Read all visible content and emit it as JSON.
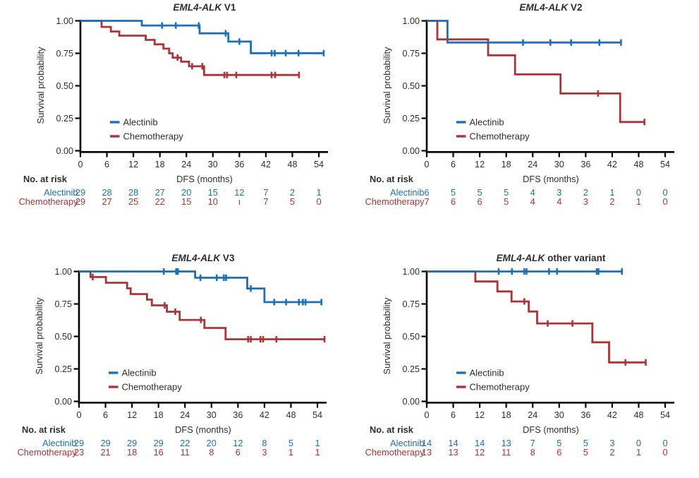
{
  "figure": {
    "background": "#ffffff",
    "ylabel": "Survival probability",
    "xlabel": "DFS (months)",
    "risk_header": "No. at risk",
    "yticks": [
      "1.00",
      "0.75",
      "0.50",
      "0.25",
      "0.00"
    ],
    "xticks": [
      "0",
      "6",
      "12",
      "18",
      "24",
      "30",
      "36",
      "42",
      "48",
      "54"
    ]
  },
  "colors": {
    "alectinib": "#1E6FB5",
    "chemotherapy": "#A93539",
    "axis": "#000000",
    "text": "#2E2E2E"
  },
  "chart_data": [
    {
      "type": "line",
      "subtype": "kaplan-meier",
      "title": {
        "italic": "EML4-ALK",
        "plain": " V1"
      },
      "xlabel": "DFS (months)",
      "ylabel": "Survival probability",
      "x_range": [
        0,
        54
      ],
      "y_range": [
        0,
        1
      ],
      "legend_position": "inside-lower-left",
      "series": [
        {
          "name": "Alectinib",
          "color": "alectinib",
          "steps": [
            [
              0,
              1.0
            ],
            [
              13.9,
              0.964
            ],
            [
              27.0,
              0.904
            ],
            [
              33.5,
              0.84
            ],
            [
              38.6,
              0.751
            ]
          ],
          "end": 55.1,
          "censors": [
            [
              18.5,
              0.964
            ],
            [
              21.6,
              0.964
            ],
            [
              26.8,
              0.964
            ],
            [
              32.9,
              0.904
            ],
            [
              36.0,
              0.84
            ],
            [
              43.3,
              0.751
            ],
            [
              44.0,
              0.751
            ],
            [
              46.5,
              0.751
            ],
            [
              49.4,
              0.751
            ],
            [
              55.1,
              0.751
            ]
          ]
        },
        {
          "name": "Chemotherapy",
          "color": "chemotherapy",
          "steps": [
            [
              0,
              1.0
            ],
            [
              4.8,
              0.953
            ],
            [
              6.9,
              0.918
            ],
            [
              8.8,
              0.886
            ],
            [
              14.8,
              0.853
            ],
            [
              16.8,
              0.819
            ],
            [
              18.8,
              0.786
            ],
            [
              20.1,
              0.75
            ],
            [
              20.9,
              0.717
            ],
            [
              22.8,
              0.686
            ],
            [
              24.6,
              0.65
            ],
            [
              28.0,
              0.583
            ]
          ],
          "end": 49.7,
          "censors": [
            [
              22.0,
              0.717
            ],
            [
              25.3,
              0.65
            ],
            [
              27.6,
              0.65
            ],
            [
              32.6,
              0.583
            ],
            [
              33.2,
              0.583
            ],
            [
              35.3,
              0.583
            ],
            [
              43.3,
              0.583
            ],
            [
              44.1,
              0.583
            ],
            [
              49.5,
              0.583
            ]
          ]
        }
      ],
      "at_risk": [
        {
          "label": "Alectinib",
          "color": "alectinib",
          "values": [
            "29",
            "28",
            "28",
            "27",
            "20",
            "15",
            "12",
            "7",
            "2",
            "1"
          ]
        },
        {
          "label": "Chemotherapy",
          "color": "chemotherapy",
          "values": [
            "29",
            "27",
            "25",
            "22",
            "15",
            "10",
            "ι",
            "7",
            "5",
            "0"
          ]
        }
      ]
    },
    {
      "type": "line",
      "subtype": "kaplan-meier",
      "title": {
        "italic": "EML4-ALK",
        "plain": " V2"
      },
      "xlabel": "DFS (months)",
      "ylabel": "Survival probability",
      "x_range": [
        0,
        54
      ],
      "y_range": [
        0,
        1
      ],
      "legend_position": "inside-lower-left",
      "series": [
        {
          "name": "Alectinib",
          "color": "alectinib",
          "steps": [
            [
              0,
              1.0
            ],
            [
              4.7,
              0.833
            ]
          ],
          "end": 44.0,
          "censors": [
            [
              21.8,
              0.833
            ],
            [
              28.0,
              0.833
            ],
            [
              32.7,
              0.833
            ],
            [
              39.1,
              0.833
            ],
            [
              44.0,
              0.833
            ]
          ]
        },
        {
          "name": "Chemotherapy",
          "color": "chemotherapy",
          "steps": [
            [
              0,
              1.0
            ],
            [
              2.4,
              0.857
            ],
            [
              13.9,
              0.735
            ],
            [
              20.0,
              0.588
            ],
            [
              30.3,
              0.441
            ],
            [
              43.8,
              0.221
            ]
          ],
          "end": 49.3,
          "censors": [
            [
              38.8,
              0.441
            ],
            [
              49.3,
              0.221
            ]
          ]
        }
      ],
      "at_risk": [
        {
          "label": "Alectinib",
          "color": "alectinib",
          "values": [
            "6",
            "5",
            "5",
            "5",
            "4",
            "3",
            "2",
            "1",
            "0",
            "0"
          ]
        },
        {
          "label": "Chemotherapy",
          "color": "chemotherapy",
          "values": [
            "7",
            "6",
            "6",
            "5",
            "4",
            "4",
            "3",
            "2",
            "1",
            "0"
          ]
        }
      ]
    },
    {
      "type": "line",
      "subtype": "kaplan-meier",
      "title": {
        "italic": "EML4-ALK",
        "plain": " V3"
      },
      "xlabel": "DFS (months)",
      "ylabel": "Survival probability",
      "x_range": [
        0,
        54
      ],
      "y_range": [
        0,
        1
      ],
      "legend_position": "inside-lower-left",
      "series": [
        {
          "name": "Alectinib",
          "color": "alectinib",
          "steps": [
            [
              0,
              1.0
            ],
            [
              26.3,
              0.952
            ],
            [
              38.1,
              0.869
            ],
            [
              42.0,
              0.764
            ]
          ],
          "end": 54.9,
          "censors": [
            [
              19.2,
              1.0
            ],
            [
              22.0,
              1.0
            ],
            [
              22.4,
              1.0
            ],
            [
              27.5,
              0.952
            ],
            [
              31.2,
              0.952
            ],
            [
              32.8,
              0.952
            ],
            [
              33.3,
              0.952
            ],
            [
              38.9,
              0.869
            ],
            [
              44.2,
              0.764
            ],
            [
              46.9,
              0.764
            ],
            [
              49.8,
              0.764
            ],
            [
              50.7,
              0.764
            ],
            [
              51.3,
              0.764
            ],
            [
              54.9,
              0.764
            ]
          ]
        },
        {
          "name": "Chemotherapy",
          "color": "chemotherapy",
          "steps": [
            [
              0,
              1.0
            ],
            [
              2.6,
              0.957
            ],
            [
              6.1,
              0.913
            ],
            [
              10.9,
              0.87
            ],
            [
              11.7,
              0.826
            ],
            [
              15.4,
              0.783
            ],
            [
              16.5,
              0.739
            ],
            [
              19.9,
              0.69
            ],
            [
              22.8,
              0.627
            ],
            [
              28.4,
              0.565
            ],
            [
              33.2,
              0.478
            ]
          ],
          "end": 55.6,
          "censors": [
            [
              3.1,
              0.957
            ],
            [
              19.4,
              0.739
            ],
            [
              21.8,
              0.69
            ],
            [
              27.6,
              0.627
            ],
            [
              38.3,
              0.478
            ],
            [
              38.9,
              0.478
            ],
            [
              41.1,
              0.478
            ],
            [
              41.7,
              0.478
            ],
            [
              44.7,
              0.478
            ],
            [
              55.6,
              0.478
            ]
          ]
        }
      ],
      "at_risk": [
        {
          "label": "Alectinib",
          "color": "alectinib",
          "values": [
            "29",
            "29",
            "29",
            "29",
            "22",
            "20",
            "12",
            "8",
            "5",
            "1"
          ]
        },
        {
          "label": "Chemotherapy",
          "color": "chemotherapy",
          "values": [
            "23",
            "21",
            "18",
            "16",
            "11",
            "8",
            "6",
            "3",
            "1",
            "1"
          ]
        }
      ]
    },
    {
      "type": "line",
      "subtype": "kaplan-meier",
      "title": {
        "italic": "EML4-ALK",
        "plain": " other variant"
      },
      "xlabel": "DFS (months)",
      "ylabel": "Survival probability",
      "x_range": [
        0,
        54
      ],
      "y_range": [
        0,
        1
      ],
      "legend_position": "inside-lower-left",
      "series": [
        {
          "name": "Alectinib",
          "color": "alectinib",
          "steps": [
            [
              0,
              1.0
            ]
          ],
          "end": 44.2,
          "censors": [
            [
              16.3,
              1.0
            ],
            [
              19.3,
              1.0
            ],
            [
              22.1,
              1.0
            ],
            [
              22.6,
              1.0
            ],
            [
              27.7,
              1.0
            ],
            [
              29.5,
              1.0
            ],
            [
              38.5,
              1.0
            ],
            [
              38.9,
              1.0
            ],
            [
              44.2,
              1.0
            ]
          ]
        },
        {
          "name": "Chemotherapy",
          "color": "chemotherapy",
          "steps": [
            [
              0,
              1.0
            ],
            [
              11.0,
              0.923
            ],
            [
              16.0,
              0.846
            ],
            [
              19.2,
              0.769
            ],
            [
              23.1,
              0.692
            ],
            [
              25.0,
              0.6
            ],
            [
              37.5,
              0.455
            ],
            [
              41.3,
              0.3
            ]
          ],
          "end": 49.6,
          "censors": [
            [
              22.1,
              0.769
            ],
            [
              27.4,
              0.6
            ],
            [
              33.0,
              0.6
            ],
            [
              45.0,
              0.3
            ],
            [
              49.6,
              0.3
            ]
          ]
        }
      ],
      "at_risk": [
        {
          "label": "Alectinib",
          "color": "alectinib",
          "values": [
            "14",
            "14",
            "14",
            "13",
            "7",
            "5",
            "5",
            "3",
            "0",
            "0"
          ]
        },
        {
          "label": "Chemotherapy",
          "color": "chemotherapy",
          "values": [
            "13",
            "13",
            "12",
            "11",
            "8",
            "6",
            "5",
            "2",
            "1",
            "0"
          ]
        }
      ]
    }
  ]
}
